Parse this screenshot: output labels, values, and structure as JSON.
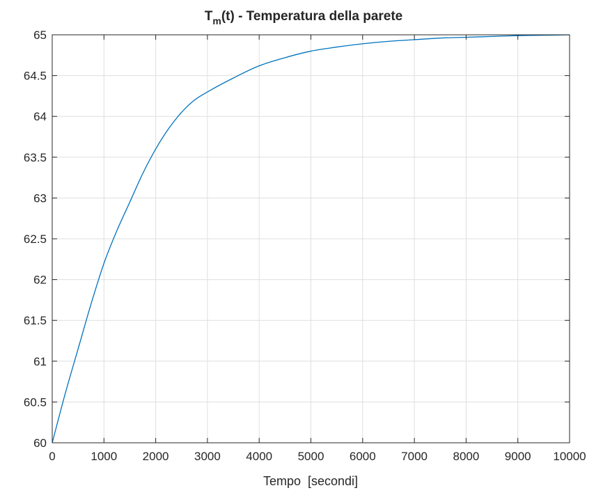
{
  "chart_data": {
    "type": "line",
    "title": {
      "main": "T",
      "subscript": "m",
      "rest": "(t) - Temperatura della parete"
    },
    "xlabel": "Tempo  [secondi]",
    "ylabel": "",
    "xlim": [
      0,
      10000
    ],
    "ylim": [
      60,
      65
    ],
    "xticks": [
      0,
      1000,
      2000,
      3000,
      4000,
      5000,
      6000,
      7000,
      8000,
      9000,
      10000
    ],
    "yticks": [
      60,
      60.5,
      61,
      61.5,
      62,
      62.5,
      63,
      63.5,
      64,
      64.5,
      65
    ],
    "xtick_labels": [
      "0",
      "1000",
      "2000",
      "3000",
      "4000",
      "5000",
      "6000",
      "7000",
      "8000",
      "9000",
      "10000"
    ],
    "ytick_labels": [
      "60",
      "60.5",
      "61",
      "61.5",
      "62",
      "62.5",
      "63",
      "63.5",
      "64",
      "64.5",
      "65"
    ],
    "grid": true,
    "series": [
      {
        "color": "#0072BD",
        "x": [
          0,
          250,
          500,
          750,
          1000,
          1250,
          1500,
          1750,
          2000,
          2250,
          2500,
          2750,
          3000,
          3500,
          4000,
          4500,
          5000,
          5500,
          6000,
          6500,
          7000,
          7500,
          8000,
          8500,
          9000,
          9500,
          10000
        ],
        "y": [
          60.0,
          60.6,
          61.15,
          61.7,
          62.2,
          62.6,
          62.95,
          63.3,
          63.6,
          63.85,
          64.05,
          64.2,
          64.3,
          64.47,
          64.62,
          64.72,
          64.8,
          64.85,
          64.89,
          64.92,
          64.94,
          64.96,
          64.97,
          64.98,
          64.99,
          64.995,
          65.0
        ]
      }
    ]
  }
}
